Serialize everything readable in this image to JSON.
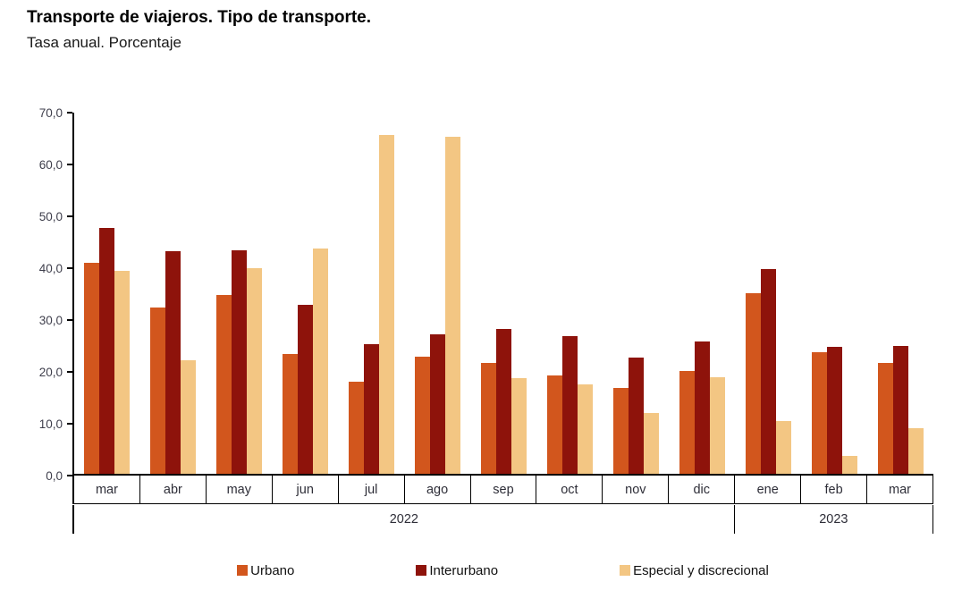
{
  "chart_data": {
    "type": "bar",
    "title": "Transporte de viajeros. Tipo de transporte.",
    "subtitle": "Tasa anual. Porcentaje",
    "categories": [
      "mar",
      "abr",
      "may",
      "jun",
      "jul",
      "ago",
      "sep",
      "oct",
      "nov",
      "dic",
      "ene",
      "feb",
      "mar"
    ],
    "year_groups": [
      {
        "label": "2022",
        "span": 10
      },
      {
        "label": "2023",
        "span": 3
      }
    ],
    "series": [
      {
        "name": "Urbano",
        "color": "#d2561d",
        "values": [
          40.9,
          32.3,
          34.7,
          23.2,
          17.9,
          22.7,
          21.5,
          19.1,
          16.6,
          20.0,
          35.0,
          23.6,
          21.5
        ]
      },
      {
        "name": "Interurbano",
        "color": "#8e130b",
        "values": [
          47.6,
          43.1,
          43.4,
          32.7,
          25.2,
          27.0,
          28.1,
          26.6,
          22.5,
          25.7,
          39.6,
          24.6,
          24.7
        ]
      },
      {
        "name": "Especial y discrecional",
        "color": "#f3c683",
        "values": [
          39.4,
          22.0,
          39.8,
          43.6,
          65.7,
          65.4,
          18.5,
          17.3,
          11.8,
          18.7,
          10.2,
          3.5,
          8.8
        ]
      }
    ],
    "ylim": [
      0,
      70
    ],
    "yticks": [
      "70,0",
      "60,0",
      "50,0",
      "40,0",
      "30,0",
      "20,0",
      "10,0",
      "0,0"
    ],
    "grid": false,
    "legend_position": "bottom",
    "axis_color": "#000000",
    "tick_label_color": "#3f3f4c"
  }
}
